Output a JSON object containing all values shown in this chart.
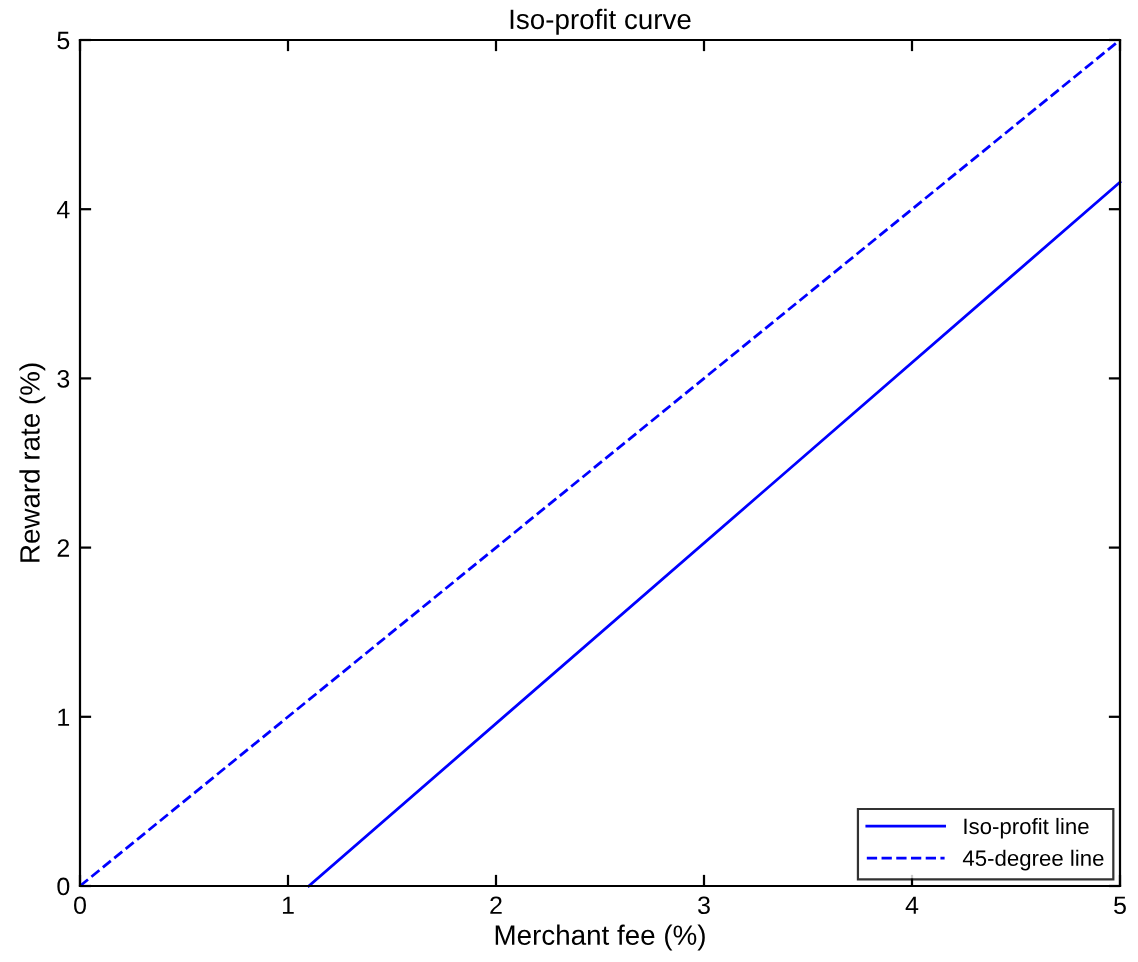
{
  "chart_data": {
    "type": "line",
    "title": "Iso-profit curve",
    "xlabel": "Merchant fee (%)",
    "ylabel": "Reward rate (%)",
    "series": [
      {
        "name": "Iso-profit line",
        "color": "#0000ff",
        "x": [
          1.1,
          5
        ],
        "values": [
          0,
          4.16
        ],
        "line_style": "solid"
      },
      {
        "name": "45-degree line",
        "color": "#0000ff",
        "x": [
          0,
          5
        ],
        "values": [
          0,
          5
        ],
        "line_style": "dashed"
      }
    ],
    "xlim": [
      0,
      5
    ],
    "ylim": [
      0,
      5
    ],
    "xticks": [
      0,
      1,
      2,
      3,
      4,
      5
    ],
    "yticks": [
      0,
      1,
      2,
      3,
      4,
      5
    ],
    "grid": false,
    "legend": "bottom right"
  }
}
